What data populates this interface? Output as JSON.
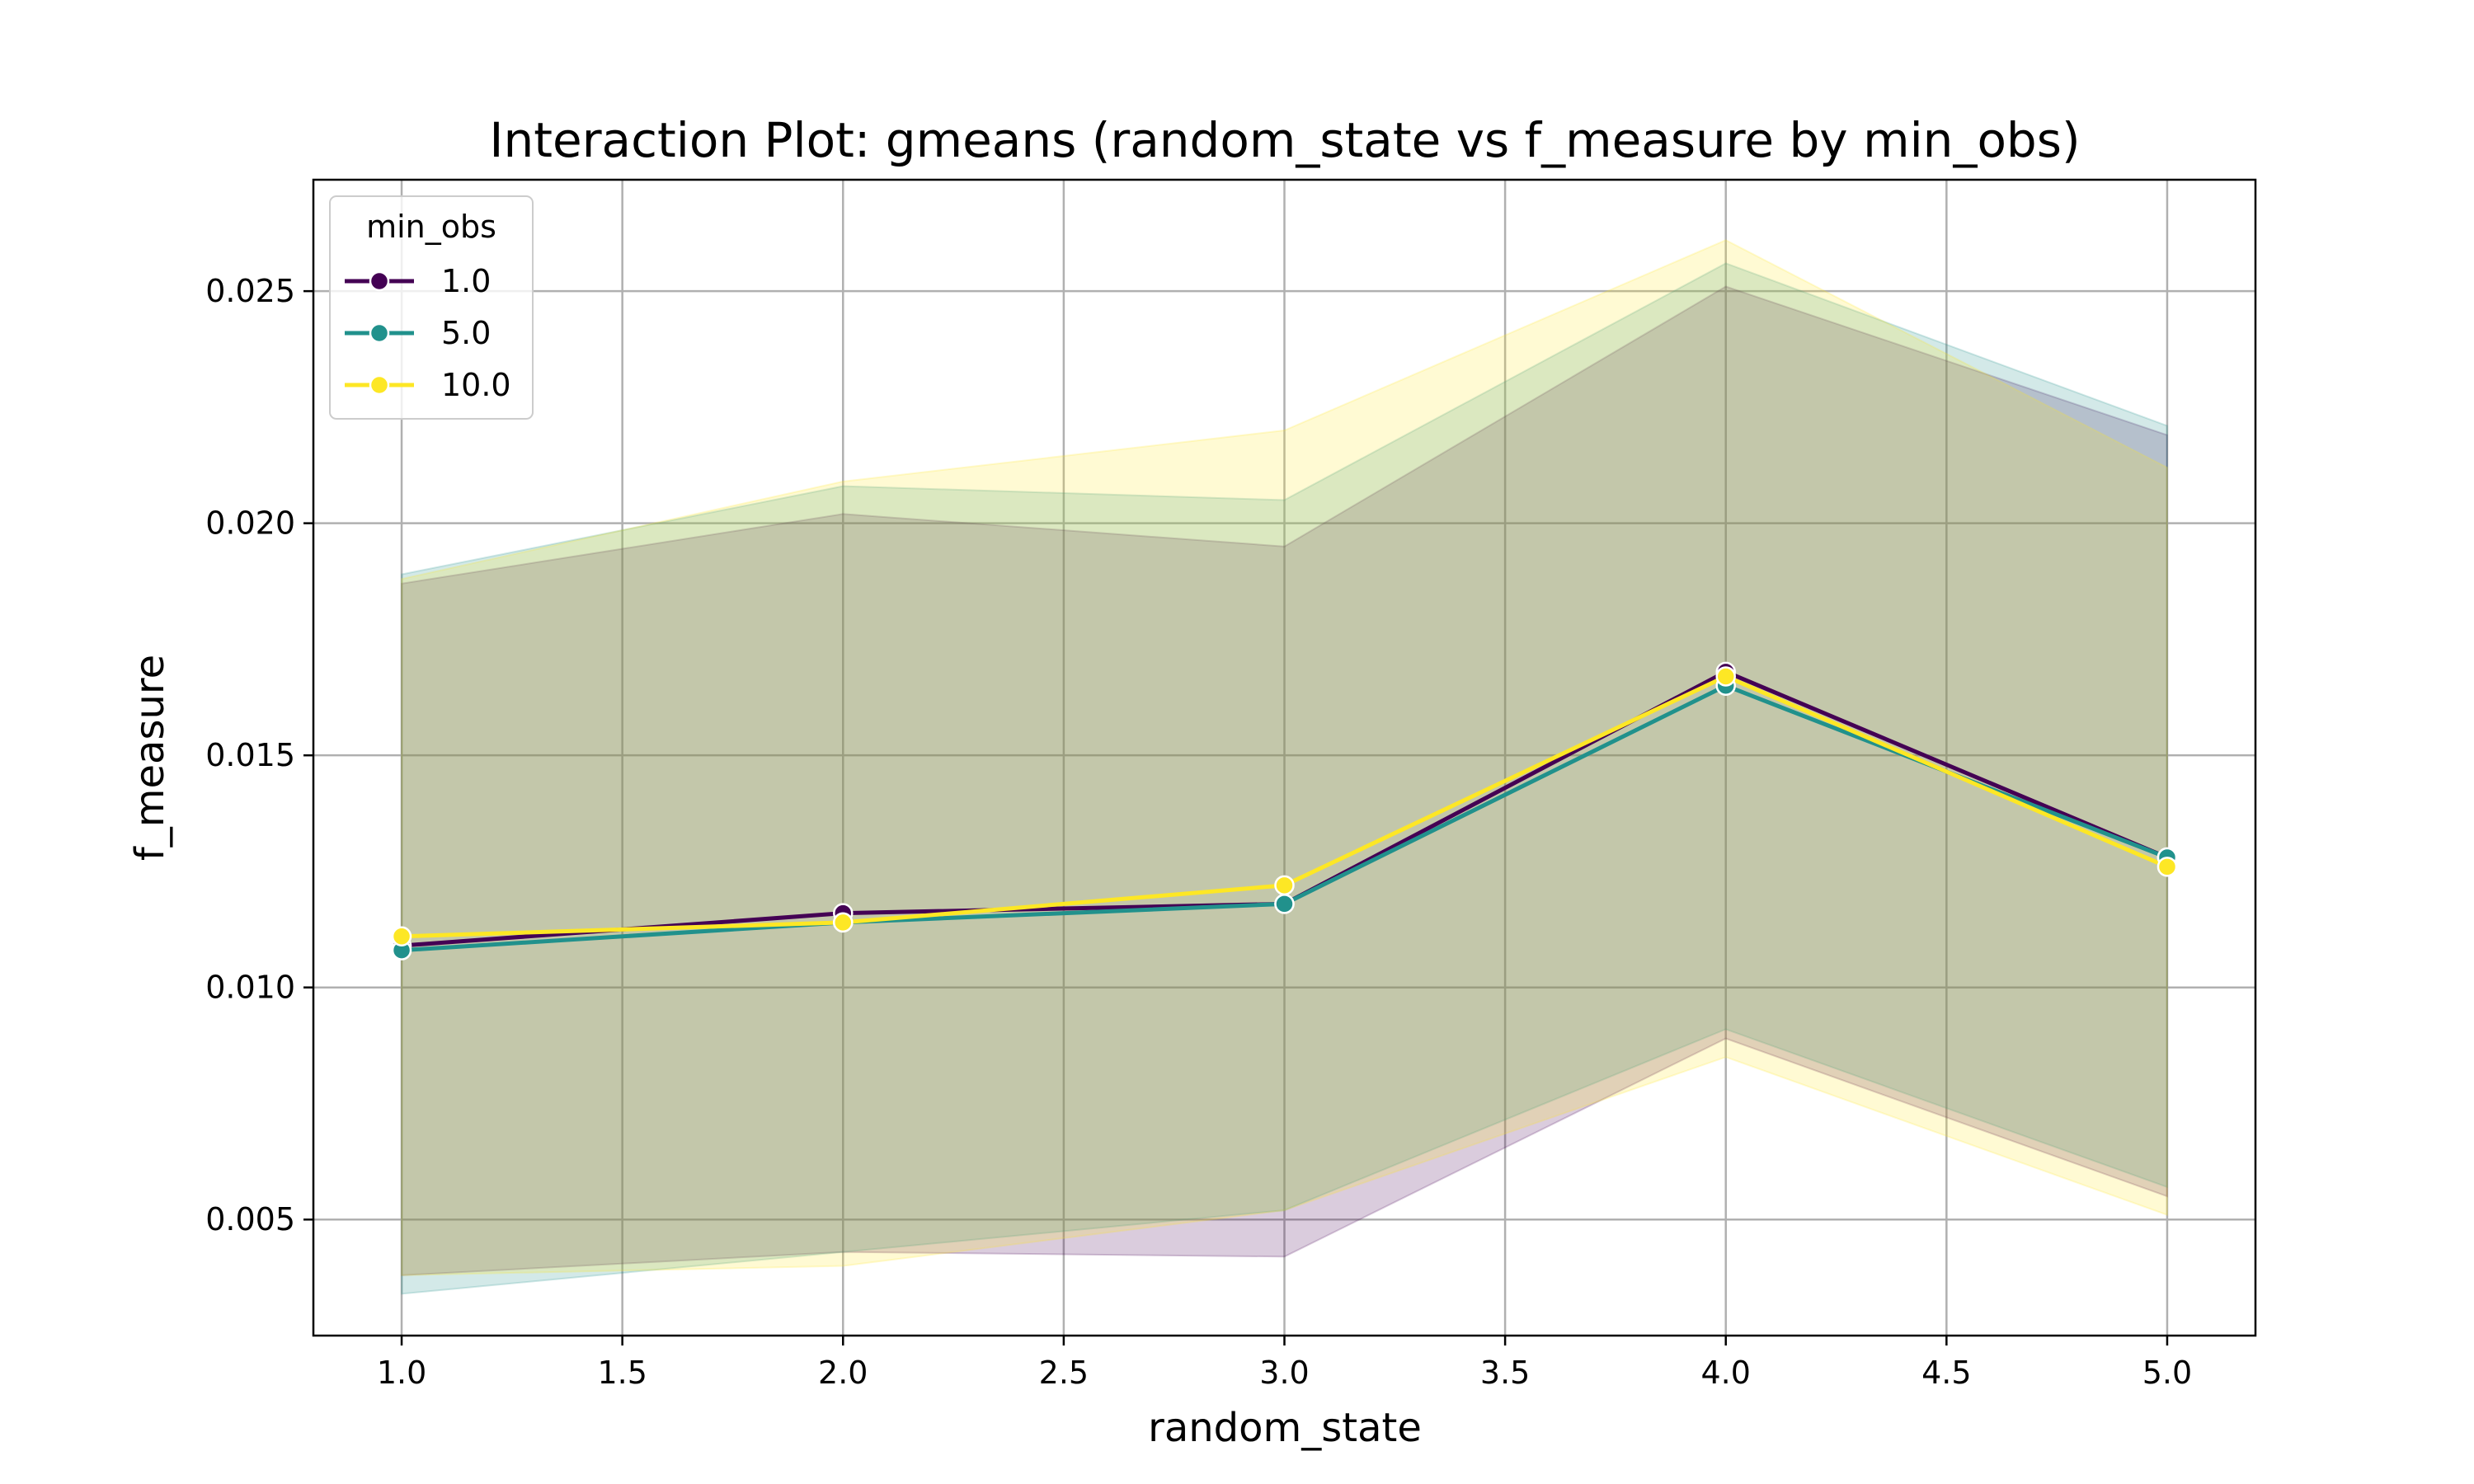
{
  "chart_data": {
    "type": "line",
    "title": "Interaction Plot: gmeans (random_state vs f_measure by min_obs)",
    "xlabel": "random_state",
    "ylabel": "f_measure",
    "xlim": [
      0.8,
      5.2
    ],
    "ylim": [
      0.0025,
      0.0274
    ],
    "xticks": [
      1.0,
      1.5,
      2.0,
      2.5,
      3.0,
      3.5,
      4.0,
      4.5,
      5.0
    ],
    "xtick_labels": [
      "1.0",
      "1.5",
      "2.0",
      "2.5",
      "3.0",
      "3.5",
      "4.0",
      "4.5",
      "5.0"
    ],
    "yticks": [
      0.005,
      0.01,
      0.015,
      0.02,
      0.025
    ],
    "ytick_labels": [
      "0.005",
      "0.010",
      "0.015",
      "0.020",
      "0.025"
    ],
    "grid": true,
    "legend": {
      "title": "min_obs",
      "position": "top-left"
    },
    "x": [
      1,
      2,
      3,
      4,
      5
    ],
    "series": [
      {
        "name": "1.0",
        "color": "#440154",
        "values": [
          0.0109,
          0.0116,
          0.0118,
          0.0168,
          0.0128
        ],
        "ci_upper": [
          0.0187,
          0.0202,
          0.0195,
          0.0251,
          0.0219
        ],
        "ci_lower": [
          0.0038,
          0.0043,
          0.0042,
          0.0089,
          0.0055
        ]
      },
      {
        "name": "5.0",
        "color": "#21918c",
        "values": [
          0.0108,
          0.0114,
          0.0118,
          0.0165,
          0.0128
        ],
        "ci_upper": [
          0.0189,
          0.0208,
          0.0205,
          0.0256,
          0.0221
        ],
        "ci_lower": [
          0.0034,
          0.0043,
          0.0052,
          0.0091,
          0.0057
        ]
      },
      {
        "name": "10.0",
        "color": "#fde725",
        "values": [
          0.0111,
          0.0114,
          0.0122,
          0.0167,
          0.0126
        ],
        "ci_upper": [
          0.0188,
          0.0209,
          0.022,
          0.0261,
          0.0212
        ],
        "ci_lower": [
          0.0038,
          0.004,
          0.0052,
          0.0085,
          0.0051
        ]
      }
    ]
  }
}
